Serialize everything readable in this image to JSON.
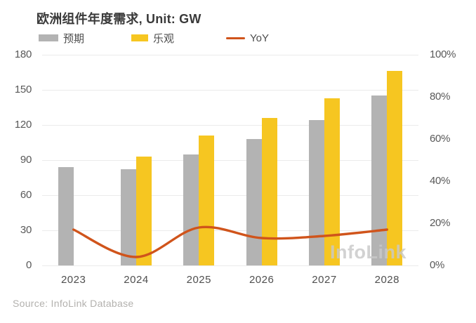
{
  "title": "欧洲组件年度需求, Unit: GW",
  "legend": {
    "expected": {
      "label": "预期",
      "color": "#b3b3b3"
    },
    "optimistic": {
      "label": "乐观",
      "color": "#f6c621"
    },
    "yoy": {
      "label": "YoY",
      "color": "#d0541b"
    }
  },
  "watermark": "InfoLink",
  "source": "Source: InfoLink Database",
  "chart_data": {
    "type": "bar",
    "title": "欧洲组件年度需求, Unit: GW",
    "categories": [
      "2023",
      "2024",
      "2025",
      "2026",
      "2027",
      "2028"
    ],
    "series": [
      {
        "name": "预期",
        "type": "bar",
        "color": "#b3b3b3",
        "values": [
          84,
          82,
          95,
          108,
          124,
          145
        ]
      },
      {
        "name": "乐观",
        "type": "bar",
        "color": "#f6c621",
        "values": [
          null,
          93,
          111,
          126,
          143,
          166
        ]
      },
      {
        "name": "YoY",
        "type": "line",
        "color": "#d0541b",
        "axis": "right",
        "unit": "%",
        "values": [
          17,
          4,
          18,
          13,
          14,
          17
        ]
      }
    ],
    "left_axis": {
      "min": 0,
      "max": 180,
      "ticks": [
        0,
        30,
        60,
        90,
        120,
        150,
        180
      ],
      "unit": "GW"
    },
    "right_axis": {
      "min": 0,
      "max": 100,
      "ticks": [
        0,
        20,
        40,
        60,
        80,
        100
      ],
      "unit": "%"
    },
    "grid": "horizontal",
    "legend_position": "top",
    "line_style": "smooth"
  }
}
